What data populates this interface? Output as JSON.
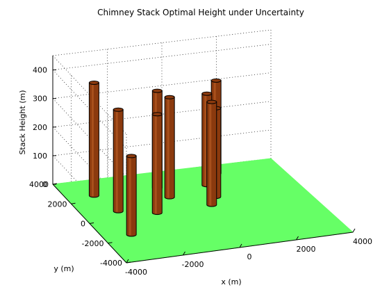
{
  "chart_data": {
    "type": "bar3d-cylinders",
    "title": "Chimney Stack Optimal Height under Uncertainty",
    "xlabel": "x (m)",
    "ylabel": "y (m)",
    "zlabel": "Stack Height (m)",
    "xlim": [
      -4000,
      4000
    ],
    "ylim": [
      -4000,
      4000
    ],
    "zlim": [
      0,
      450
    ],
    "xticks": [
      -4000,
      -2000,
      0,
      2000,
      4000
    ],
    "yticks": [
      -4000,
      -2000,
      0,
      2000,
      4000
    ],
    "zticks": [
      0,
      100,
      200,
      300,
      400
    ],
    "grid": true,
    "ground_color": "#66ff66",
    "stack_color": "#8b3a0e",
    "stacks": [
      {
        "x": -3000,
        "y": 2500,
        "z": 395
      },
      {
        "x": -2700,
        "y": 800,
        "z": 355
      },
      {
        "x": -3000,
        "y": -1500,
        "z": 275
      },
      {
        "x": -1500,
        "y": 200,
        "z": 345
      },
      {
        "x": -700,
        "y": 2500,
        "z": 340
      },
      {
        "x": -600,
        "y": 1500,
        "z": 350
      },
      {
        "x": 1000,
        "y": 2200,
        "z": 320
      },
      {
        "x": 500,
        "y": 300,
        "z": 360
      },
      {
        "x": 900,
        "y": 1000,
        "z": 310
      },
      {
        "x": 1700,
        "y": 3200,
        "z": 325
      }
    ]
  }
}
